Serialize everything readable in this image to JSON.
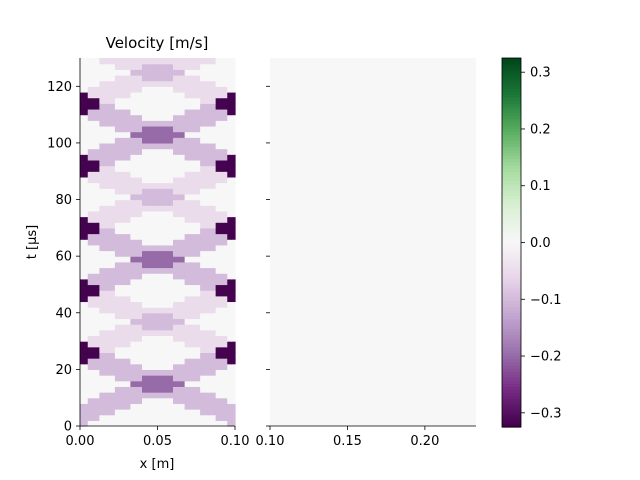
{
  "chart_data": [
    {
      "type": "heatmap",
      "title": "Velocity [m/s]",
      "xlabel": "x [m]",
      "ylabel": "t [μs]",
      "xlim": [
        0.0,
        0.1
      ],
      "ylim": [
        0,
        130
      ],
      "x_ticks": [
        0.0,
        0.05,
        0.1
      ],
      "x_tick_labels": [
        "0.00",
        "0.05",
        "0.10"
      ],
      "y_ticks": [
        0,
        20,
        40,
        60,
        80,
        100,
        120
      ],
      "y_tick_labels": [
        "0",
        "20",
        "40",
        "60",
        "80",
        "100",
        "120"
      ],
      "grid": false,
      "value_levels": {
        "zero": 0.0,
        "weak": -0.05,
        "moderate": -0.1,
        "strong": -0.2,
        "extreme": -0.32
      },
      "wave_transit_time_us": 22,
      "bands": [
        {
          "direction": "right",
          "t_start_us": 0,
          "t_end_us": 130,
          "width_us": 8
        },
        {
          "direction": "left",
          "t_start_us": 22,
          "t_end_us": 130,
          "width_us": 8
        }
      ],
      "band_value_sequence": [
        -0.1,
        -0.05,
        -0.1,
        -0.05,
        -0.1,
        -0.05,
        -0.1
      ],
      "grid_cells": {
        "nx": 40,
        "nt": 65
      }
    },
    {
      "type": "heatmap",
      "title": "",
      "xlabel": "",
      "ylabel": "",
      "xlim": [
        0.1,
        0.233
      ],
      "ylim": [
        0,
        130
      ],
      "x_ticks": [
        0.1,
        0.15,
        0.2
      ],
      "x_tick_labels": [
        "0.10",
        "0.15",
        "0.20"
      ],
      "y_ticks": [
        0,
        20,
        40,
        60,
        80,
        100,
        120
      ],
      "y_tick_labels": [],
      "uniform_value": 0.0
    }
  ],
  "colorbar": {
    "colormap": "PRGn",
    "vmin": -0.325,
    "vmax": 0.325,
    "ticks": [
      0.3,
      0.2,
      0.1,
      0.0,
      -0.1,
      -0.2,
      -0.3
    ],
    "tick_labels": [
      "0.3",
      "0.2",
      "0.1",
      "0.0",
      "−0.1",
      "−0.2",
      "−0.3"
    ]
  }
}
